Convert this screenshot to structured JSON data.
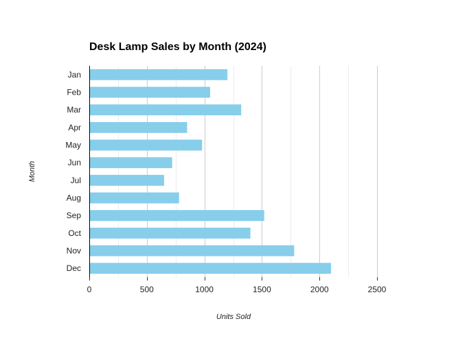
{
  "chart_data": {
    "type": "bar",
    "orientation": "horizontal",
    "title": "Desk Lamp Sales by Month (2024)",
    "xlabel": "Units Sold",
    "ylabel": "Month",
    "categories": [
      "Jan",
      "Feb",
      "Mar",
      "Apr",
      "May",
      "Jun",
      "Jul",
      "Aug",
      "Sep",
      "Oct",
      "Nov",
      "Dec"
    ],
    "values": [
      1200,
      1050,
      1320,
      850,
      980,
      720,
      650,
      780,
      1520,
      1400,
      1780,
      2100
    ],
    "xlim": [
      0,
      2500
    ],
    "xticks": [
      "0",
      "500",
      "1000",
      "1500",
      "2000",
      "2500"
    ],
    "grid": true,
    "bar_color": "#87ceeb",
    "grid_color": "#cccccc",
    "legend": "none"
  }
}
